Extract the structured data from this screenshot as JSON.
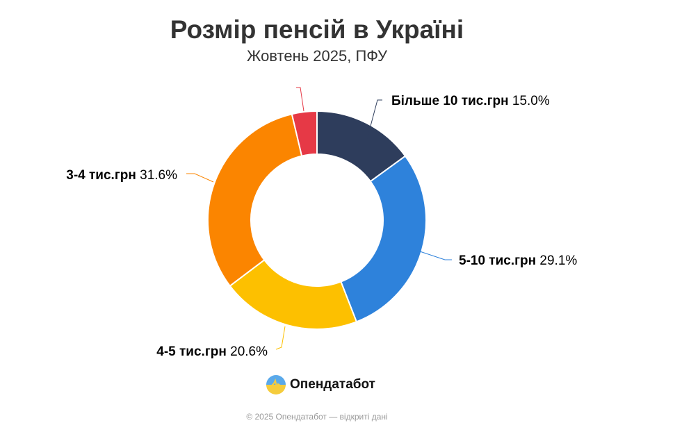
{
  "chart_data": {
    "type": "pie",
    "donut": true,
    "title": "Розмір пенсій в Україні",
    "subtitle": "Жовтень 2025, ПФУ",
    "slices": [
      {
        "label": "Більше 10 тис.грн",
        "value": 15.0,
        "value_label": "15.0%",
        "color": "#2e3d5c"
      },
      {
        "label": "5-10 тис.грн",
        "value": 29.1,
        "value_label": "29.1%",
        "color": "#2e82db"
      },
      {
        "label": "4-5 тис.грн",
        "value": 20.6,
        "value_label": "20.6%",
        "color": "#fdc000"
      },
      {
        "label": "3-4 тис.грн",
        "value": 31.6,
        "value_label": "31.6%",
        "color": "#fb8500"
      },
      {
        "label": "",
        "value": 3.7,
        "value_label": "",
        "color": "#e63946"
      }
    ]
  },
  "brand": {
    "name": "Опендатабот",
    "icon": "opendatabot-logo-icon"
  },
  "footer": "© 2025 Опендатабот — відкриті дані"
}
